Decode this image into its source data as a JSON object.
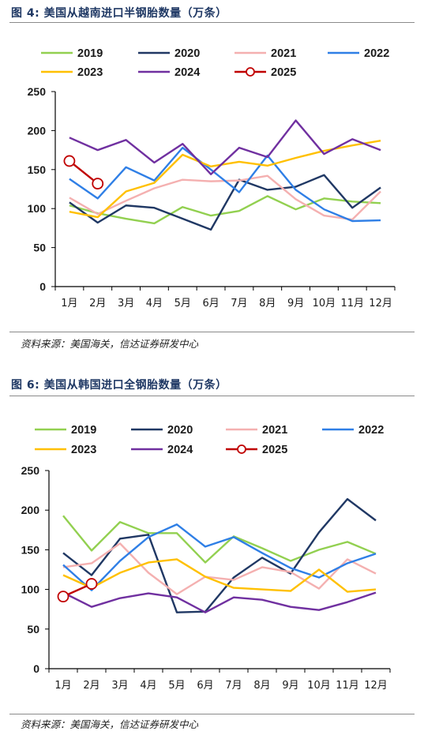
{
  "source_text": "资料来源：美国海关，信达证券研发中心",
  "colors": {
    "2019": "#92d050",
    "2020": "#203864",
    "2021": "#f4b0b0",
    "2022": "#2f7fe6",
    "2023": "#ffc000",
    "2024": "#7030a0",
    "2025": "#c00000",
    "title": "#1f3864"
  },
  "chart_data": [
    {
      "type": "line",
      "title": "图 4:  美国从越南进口半钢胎数量（万条）",
      "categories": [
        "1月",
        "2月",
        "3月",
        "4月",
        "5月",
        "6月",
        "7月",
        "8月",
        "9月",
        "10月",
        "11月",
        "12月"
      ],
      "ylim": [
        0,
        250
      ],
      "yticks": [
        "0",
        "50",
        "100",
        "150",
        "200",
        "250"
      ],
      "legend_position": "top",
      "series": [
        {
          "name": "2019",
          "values": [
            104,
            94,
            87,
            81,
            102,
            91,
            97,
            116,
            99,
            113,
            109,
            107
          ]
        },
        {
          "name": "2020",
          "values": [
            108,
            82,
            104,
            101,
            87,
            73,
            137,
            124,
            128,
            143,
            101,
            127
          ]
        },
        {
          "name": "2021",
          "values": [
            114,
            93,
            110,
            126,
            137,
            135,
            136,
            142,
            112,
            91,
            86,
            122
          ]
        },
        {
          "name": "2022",
          "values": [
            138,
            113,
            153,
            136,
            178,
            150,
            121,
            168,
            124,
            99,
            84,
            85
          ]
        },
        {
          "name": "2023",
          "values": [
            96,
            89,
            122,
            133,
            169,
            154,
            160,
            155,
            165,
            174,
            181,
            187
          ]
        },
        {
          "name": "2024",
          "values": [
            191,
            175,
            188,
            159,
            183,
            144,
            178,
            166,
            213,
            170,
            189,
            175
          ]
        },
        {
          "name": "2025",
          "values": [
            161,
            132,
            null,
            null,
            null,
            null,
            null,
            null,
            null,
            null,
            null,
            null
          ],
          "markers": true
        }
      ]
    },
    {
      "type": "line",
      "title": "图 6:  美国从韩国进口全钢胎数量（万条）",
      "categories": [
        "1月",
        "2月",
        "3月",
        "4月",
        "5月",
        "6月",
        "7月",
        "8月",
        "9月",
        "10月",
        "11月",
        "12月"
      ],
      "ylim": [
        0,
        250
      ],
      "yticks": [
        "0",
        "50",
        "100",
        "150",
        "200",
        "250"
      ],
      "legend_position": "top",
      "series": [
        {
          "name": "2019",
          "values": [
            193,
            149,
            185,
            171,
            171,
            134,
            167,
            152,
            136,
            150,
            160,
            145
          ]
        },
        {
          "name": "2020",
          "values": [
            146,
            118,
            164,
            169,
            71,
            72,
            115,
            140,
            120,
            172,
            214,
            187
          ]
        },
        {
          "name": "2021",
          "values": [
            128,
            133,
            158,
            121,
            94,
            116,
            112,
            128,
            122,
            101,
            138,
            120
          ]
        },
        {
          "name": "2022",
          "values": [
            131,
            99,
            136,
            166,
            182,
            154,
            166,
            146,
            127,
            115,
            133,
            145
          ]
        },
        {
          "name": "2023",
          "values": [
            118,
            102,
            121,
            134,
            138,
            116,
            102,
            100,
            98,
            125,
            97,
            100
          ]
        },
        {
          "name": "2024",
          "values": [
            96,
            78,
            89,
            95,
            90,
            71,
            90,
            87,
            78,
            74,
            84,
            96
          ]
        },
        {
          "name": "2025",
          "values": [
            91,
            107,
            null,
            null,
            null,
            null,
            null,
            null,
            null,
            null,
            null,
            null
          ],
          "markers": true
        }
      ]
    }
  ]
}
